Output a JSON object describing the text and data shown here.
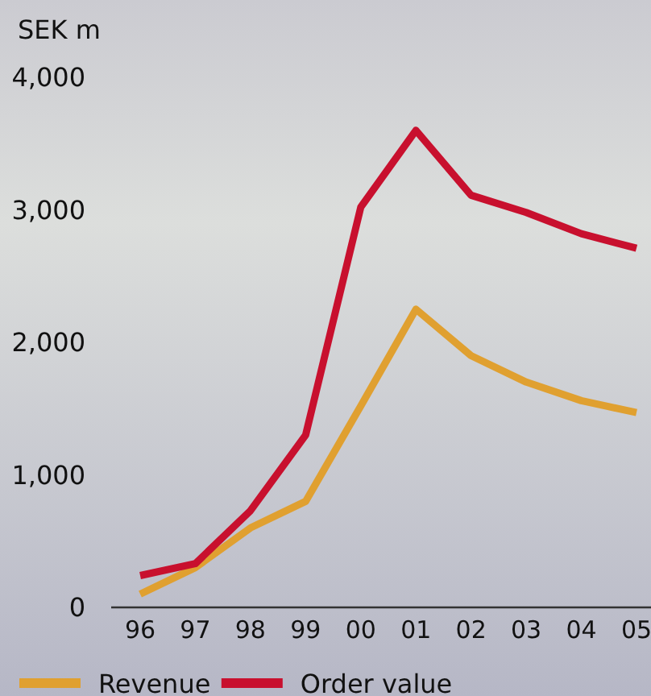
{
  "chart_data": {
    "type": "line",
    "ylabel": "SEK m",
    "categories": [
      "96",
      "97",
      "98",
      "99",
      "00",
      "01",
      "02",
      "03",
      "04",
      "05"
    ],
    "series": [
      {
        "name": "Revenue",
        "color": "#e0a030",
        "values": [
          100,
          300,
          600,
          800,
          1520,
          2250,
          1900,
          1700,
          1560,
          1470
        ]
      },
      {
        "name": "Order value",
        "color": "#c8102e",
        "values": [
          240,
          330,
          730,
          1300,
          3020,
          3600,
          3110,
          2980,
          2820,
          2710
        ]
      }
    ],
    "ylim": [
      0,
      4000
    ],
    "yticks": [
      {
        "value": 0,
        "label": "0"
      },
      {
        "value": 1000,
        "label": "1,000"
      },
      {
        "value": 2000,
        "label": "2,000"
      },
      {
        "value": 3000,
        "label": "3,000"
      },
      {
        "value": 4000,
        "label": "4,000"
      }
    ],
    "grid": false,
    "legend": "bottom",
    "marker": "none",
    "line_style": "solid"
  }
}
